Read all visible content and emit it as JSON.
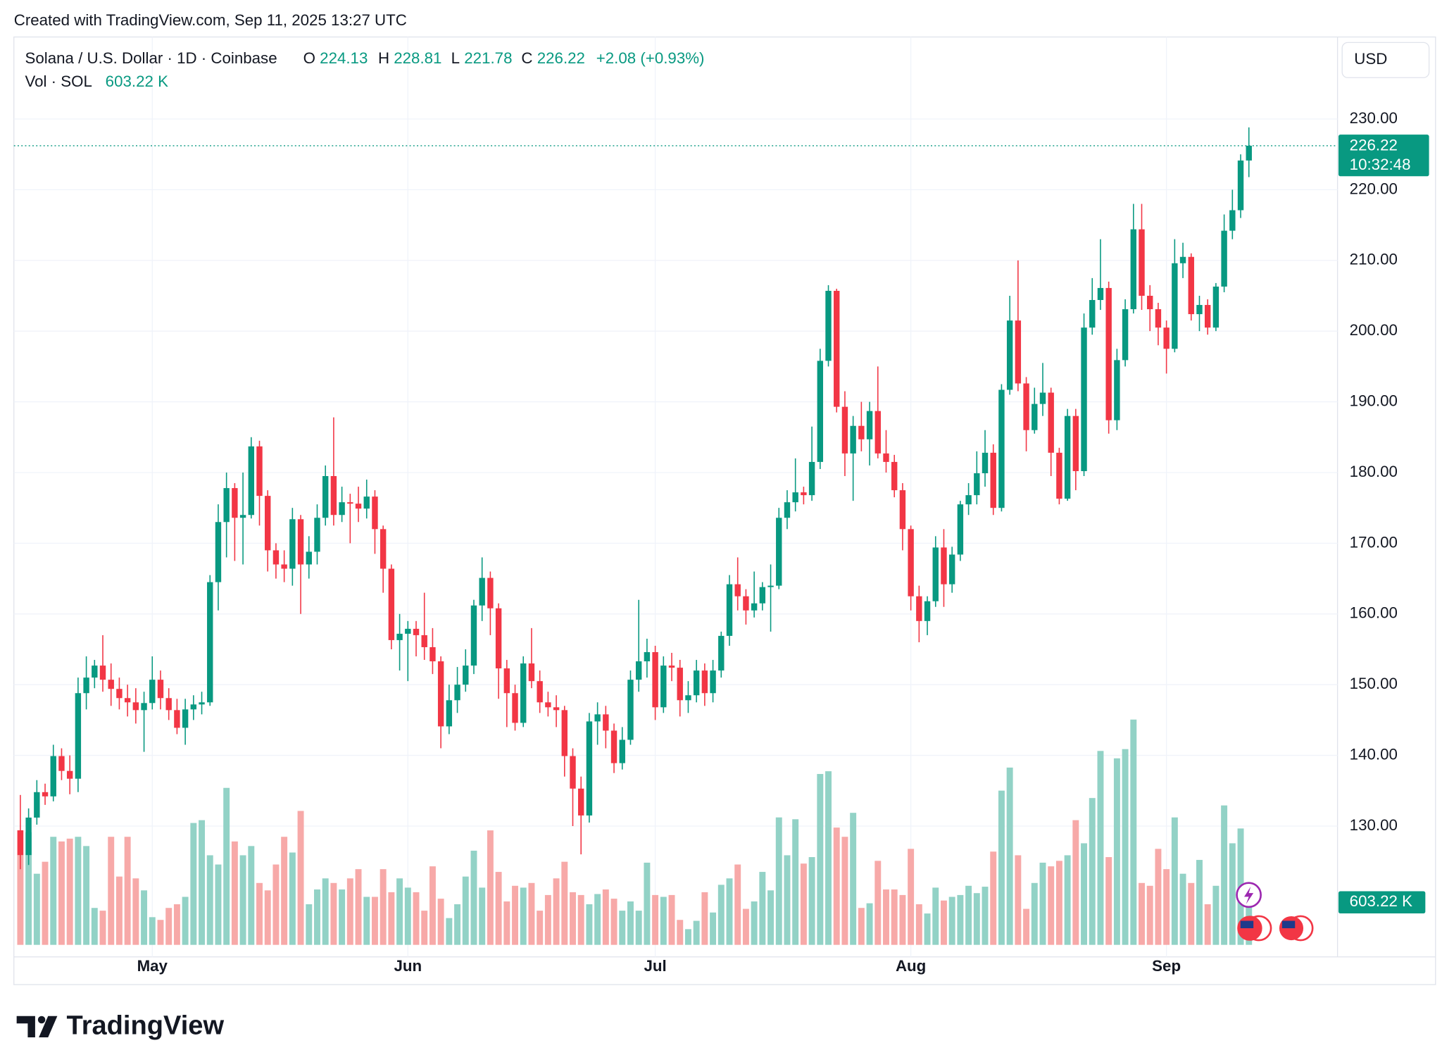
{
  "header": "Created with TradingView.com, Sep 11, 2025 13:27 UTC",
  "chart_data": {
    "type": "candlestick",
    "title": "Solana / U.S. Dollar · 1D · Coinbase",
    "ohlc_labels": [
      "O",
      "H",
      "L",
      "C"
    ],
    "change_label": "+2.08 (+0.93%)",
    "volume_title": "Vol · SOL",
    "last_volume_label": "603.22 K",
    "currency": "USD",
    "countdown": "10:32:48",
    "up_color": "#089981",
    "down_color": "#f23645",
    "up_volume_color": "#92d2c6",
    "down_volume_color": "#f7a9a8",
    "open": [
      129.4,
      125.9,
      131.2,
      134.8,
      134.2,
      139.9,
      137.8,
      136.7,
      148.8,
      151.0,
      152.7,
      150.7,
      149.4,
      148.1,
      147.5,
      146.4,
      147.4,
      150.7,
      148.1,
      146.4,
      143.9,
      146.5,
      147.2,
      147.5,
      164.5,
      173.0,
      177.8,
      173.6,
      174.0,
      183.7,
      176.7,
      169.0,
      167.0,
      166.4,
      173.4,
      167.0,
      168.8,
      173.6,
      179.5,
      174.0,
      175.8,
      175.6,
      174.9,
      176.6,
      172.0,
      166.4,
      156.3,
      157.2,
      157.9,
      157.0,
      155.3,
      153.3,
      144.1,
      147.8,
      150.0,
      152.7,
      161.2,
      165.1,
      160.8,
      152.3,
      148.8,
      144.6,
      153.0,
      150.5,
      147.5,
      146.8,
      146.4,
      139.9,
      135.3,
      131.5,
      144.8,
      145.8,
      143.5,
      138.9,
      142.2,
      150.7,
      153.3,
      154.6,
      146.8,
      152.7,
      152.4,
      147.8,
      148.5,
      152.0,
      148.8,
      152.0,
      156.9,
      164.2,
      162.5,
      160.5,
      161.5,
      163.8,
      164.0,
      173.6,
      175.8,
      177.2,
      176.8,
      181.5,
      195.8,
      205.7,
      189.3,
      182.7,
      186.6,
      184.7,
      188.7,
      182.7,
      181.5,
      177.5,
      172.0,
      162.5,
      159.0,
      161.8,
      169.4,
      164.2,
      168.4,
      175.5,
      176.8,
      179.9,
      182.8,
      175.0,
      191.7,
      201.5,
      192.6,
      186.0,
      189.7,
      191.3,
      182.8,
      176.3,
      188.0,
      180.2,
      200.5,
      204.4,
      206.1,
      187.4,
      195.9,
      203.1,
      214.4,
      205.0,
      203.1,
      200.5,
      197.5,
      209.6,
      210.5,
      202.4,
      203.7,
      200.5,
      206.3,
      214.2,
      217.1,
      224.13
    ],
    "high": [
      134.4,
      132.5,
      136.5,
      136.0,
      141.5,
      141.0,
      140.0,
      151.0,
      154.0,
      153.5,
      157.0,
      153.0,
      151.0,
      150.0,
      149.5,
      149.0,
      154.0,
      152.0,
      149.5,
      148.0,
      148.0,
      148.5,
      149.0,
      165.5,
      175.5,
      180.0,
      178.5,
      180.0,
      185.0,
      184.5,
      177.5,
      170.0,
      169.0,
      175.0,
      174.0,
      171.0,
      175.5,
      181.0,
      187.8,
      178.0,
      177.0,
      178.0,
      179.0,
      177.5,
      172.5,
      167.0,
      160.0,
      159.0,
      159.0,
      163.0,
      158.0,
      154.0,
      150.0,
      152.5,
      155.0,
      162.0,
      168.0,
      166.0,
      161.5,
      153.5,
      150.0,
      154.0,
      158.0,
      152.0,
      149.0,
      148.5,
      147.0,
      141.0,
      137.0,
      146.0,
      147.5,
      147.0,
      144.5,
      144.0,
      152.0,
      162.0,
      156.5,
      155.5,
      154.0,
      154.5,
      153.5,
      150.5,
      153.5,
      153.0,
      153.5,
      157.5,
      165.5,
      168.0,
      163.5,
      166.0,
      164.5,
      167.0,
      175.0,
      177.5,
      182.0,
      178.0,
      186.5,
      197.5,
      206.5,
      206.0,
      191.5,
      188.0,
      190.0,
      190.0,
      195.0,
      186.0,
      182.5,
      178.5,
      172.5,
      164.0,
      162.5,
      171.0,
      172.0,
      169.5,
      176.0,
      178.5,
      183.0,
      186.0,
      184.0,
      192.5,
      205.0,
      210.0,
      193.5,
      192.0,
      195.5,
      192.0,
      183.5,
      189.0,
      189.0,
      202.5,
      207.5,
      213.0,
      207.0,
      197.5,
      204.5,
      218.0,
      218.0,
      206.5,
      204.0,
      201.5,
      213.0,
      212.5,
      211.0,
      205.0,
      204.5,
      206.8,
      216.5,
      220.0,
      225.0,
      228.81
    ],
    "low": [
      123.9,
      124.5,
      130.2,
      133.0,
      133.5,
      136.5,
      134.5,
      134.8,
      146.5,
      149.5,
      149.0,
      147.0,
      146.5,
      145.5,
      144.5,
      140.5,
      146.5,
      146.5,
      145.0,
      143.0,
      141.5,
      145.0,
      145.8,
      147.0,
      160.5,
      168.0,
      167.5,
      167.0,
      173.5,
      172.5,
      166.0,
      165.0,
      164.5,
      164.0,
      160.0,
      165.0,
      167.0,
      172.5,
      172.5,
      173.0,
      170.0,
      173.0,
      173.5,
      168.5,
      163.0,
      155.0,
      152.0,
      150.5,
      154.0,
      153.5,
      151.5,
      141.0,
      143.0,
      146.0,
      149.0,
      151.5,
      159.0,
      157.0,
      148.0,
      144.0,
      143.5,
      144.0,
      149.5,
      146.0,
      145.5,
      144.0,
      137.0,
      130.0,
      126.0,
      130.5,
      141.5,
      141.0,
      137.5,
      138.0,
      141.5,
      149.0,
      151.0,
      145.0,
      146.0,
      150.5,
      145.5,
      146.0,
      147.5,
      147.0,
      147.5,
      151.0,
      155.5,
      160.5,
      158.5,
      159.5,
      160.5,
      157.5,
      163.5,
      172.0,
      174.5,
      175.5,
      176.0,
      180.5,
      195.0,
      188.5,
      179.5,
      176.0,
      183.0,
      181.0,
      182.0,
      180.0,
      176.5,
      169.0,
      160.5,
      156.0,
      157.0,
      161.0,
      161.0,
      163.0,
      167.5,
      174.0,
      175.5,
      178.0,
      174.0,
      174.5,
      191.0,
      191.5,
      183.0,
      185.5,
      188.0,
      179.5,
      175.5,
      176.0,
      177.5,
      179.5,
      199.5,
      203.0,
      185.5,
      186.0,
      195.0,
      202.5,
      203.0,
      200.0,
      198.0,
      194.0,
      197.0,
      207.5,
      201.5,
      200.0,
      199.5,
      200.0,
      205.5,
      213.0,
      216.0,
      221.78
    ],
    "close": [
      125.9,
      131.2,
      134.8,
      134.2,
      139.9,
      137.8,
      136.7,
      148.8,
      151.0,
      152.7,
      150.7,
      149.4,
      148.1,
      147.5,
      146.4,
      147.4,
      150.7,
      148.1,
      146.4,
      143.9,
      146.5,
      147.2,
      147.5,
      164.5,
      173.0,
      177.8,
      173.6,
      174.0,
      183.7,
      176.7,
      169.0,
      167.0,
      166.4,
      173.4,
      167.0,
      168.8,
      173.6,
      179.5,
      174.0,
      175.8,
      175.6,
      174.9,
      176.6,
      172.0,
      166.4,
      156.3,
      157.2,
      157.9,
      157.0,
      155.3,
      153.3,
      144.1,
      147.8,
      150.0,
      152.7,
      161.2,
      165.1,
      160.8,
      152.3,
      148.8,
      144.6,
      153.0,
      150.5,
      147.5,
      146.8,
      146.4,
      139.9,
      135.3,
      131.5,
      144.8,
      145.8,
      143.5,
      138.9,
      142.2,
      150.7,
      153.3,
      154.6,
      146.8,
      152.7,
      152.4,
      147.8,
      148.5,
      152.0,
      148.8,
      152.0,
      156.9,
      164.2,
      162.5,
      160.5,
      161.5,
      163.8,
      164.0,
      173.6,
      175.8,
      177.2,
      176.8,
      181.5,
      195.8,
      205.7,
      189.3,
      182.7,
      186.6,
      184.7,
      188.7,
      182.7,
      181.5,
      177.5,
      172.0,
      162.5,
      159.0,
      161.8,
      169.4,
      164.2,
      168.4,
      175.5,
      176.8,
      179.9,
      182.8,
      175.0,
      191.7,
      201.5,
      192.6,
      186.0,
      189.7,
      191.3,
      182.8,
      176.3,
      188.0,
      180.2,
      200.5,
      204.4,
      206.1,
      187.4,
      195.9,
      203.1,
      214.4,
      205.0,
      203.1,
      200.5,
      197.5,
      209.6,
      210.5,
      202.4,
      203.7,
      200.5,
      206.3,
      214.2,
      217.1,
      224.13,
      226.22
    ],
    "volume": [
      1624,
      1598,
      1009,
      1179,
      1533,
      1467,
      1507,
      1533,
      1402,
      524,
      485,
      1533,
      969,
      1533,
      943,
      773,
      393,
      354,
      524,
      576,
      681,
      1729,
      1769,
      1271,
      1140,
      2227,
      1467,
      1271,
      1402,
      878,
      773,
      1140,
      1533,
      1310,
      1900,
      576,
      786,
      943,
      878,
      786,
      943,
      1074,
      681,
      681,
      1074,
      747,
      943,
      812,
      747,
      485,
      1114,
      655,
      380,
      576,
      969,
      1336,
      812,
      1624,
      1035,
      616,
      838,
      812,
      878,
      485,
      707,
      943,
      1179,
      747,
      707,
      576,
      721,
      786,
      655,
      485,
      616,
      485,
      1166,
      707,
      681,
      707,
      354,
      223,
      341,
      747,
      459,
      852,
      943,
      1140,
      511,
      616,
      1035,
      773,
      1808,
      1271,
      1782,
      1153,
      1245,
      2424,
      2463,
      1664,
      1533,
      1873,
      524,
      590,
      1192,
      786,
      786,
      707,
      1362,
      576,
      445,
      812,
      629,
      681,
      707,
      838,
      734,
      825,
      1323,
      2188,
      2515,
      1271,
      511,
      878,
      1166,
      1114,
      1192,
      1271,
      1769,
      1441,
      2083,
      2751,
      1245,
      2646,
      2777,
      3196,
      878,
      838,
      1362,
      1074,
      1808,
      1009,
      878,
      1205,
      576,
      838,
      1978,
      1441,
      1651,
      603.22
    ],
    "xlim": [
      -0.785,
      159.75
    ],
    "xticks": [
      {
        "value": 16,
        "label": "May"
      },
      {
        "value": 47,
        "label": "Jun"
      },
      {
        "value": 77,
        "label": "Jul"
      },
      {
        "value": 108,
        "label": "Aug"
      },
      {
        "value": 139,
        "label": "Sep"
      }
    ],
    "ylim": [
      111.5,
      241.6
    ],
    "yticks": [
      {
        "value": 130,
        "label": "130.00"
      },
      {
        "value": 140,
        "label": "140.00"
      },
      {
        "value": 150,
        "label": "150.00"
      },
      {
        "value": 160,
        "label": "160.00"
      },
      {
        "value": 170,
        "label": "170.00"
      },
      {
        "value": 180,
        "label": "180.00"
      },
      {
        "value": 190,
        "label": "190.00"
      },
      {
        "value": 200,
        "label": "200.00"
      },
      {
        "value": 210,
        "label": "210.00"
      },
      {
        "value": 220,
        "label": "220.00"
      },
      {
        "value": 230,
        "label": "230.00"
      }
    ],
    "volume_lim": [
      0,
      4000
    ],
    "grid": true
  },
  "footer": "TradingView"
}
